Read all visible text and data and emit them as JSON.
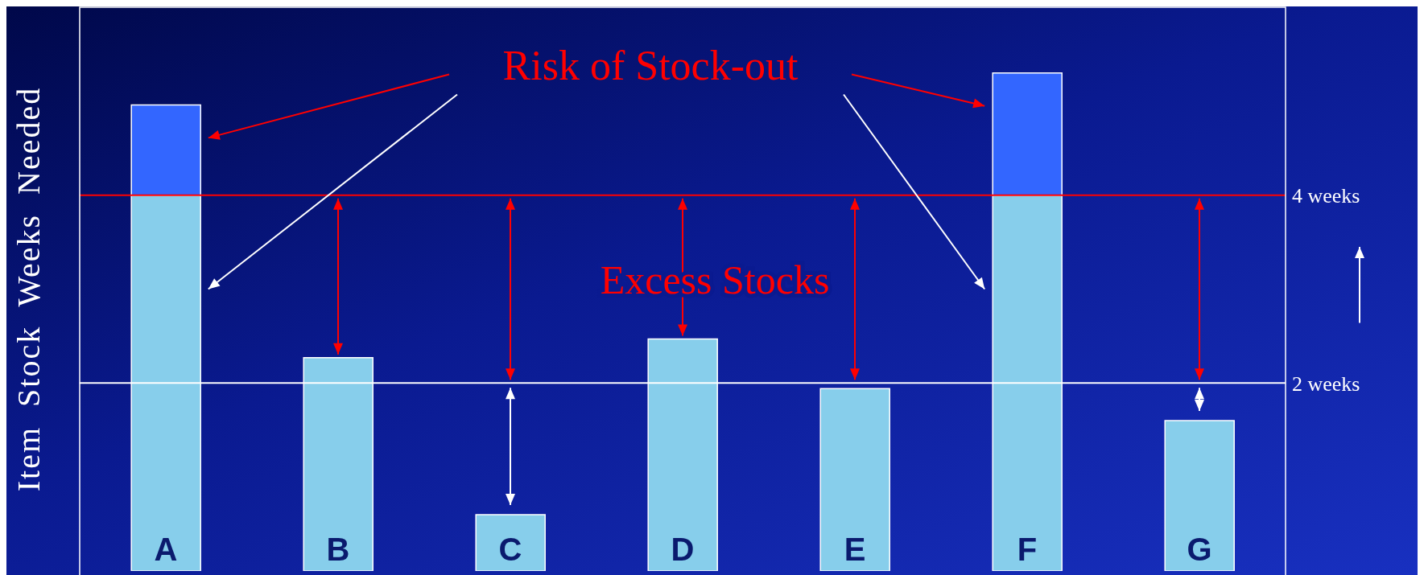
{
  "chart_data": {
    "type": "bar",
    "ylabel": "Item  Stock  Weeks  Needed",
    "categories": [
      "A",
      "B",
      "C",
      "D",
      "E",
      "F",
      "G"
    ],
    "stacked": true,
    "series": [
      {
        "color": "#87ceeb",
        "values": [
          4,
          2.27,
          0.6,
          2.47,
          1.94,
          4,
          1.6
        ]
      },
      {
        "color": "#3366ff",
        "values": [
          0.96,
          null,
          null,
          null,
          null,
          1.3,
          null
        ]
      }
    ],
    "ylim": [
      0,
      6
    ],
    "yticks": [
      {
        "value": 2,
        "label": "2 weeks"
      },
      {
        "value": 4,
        "label": "4 weeks"
      }
    ],
    "ref_lines": [
      {
        "axis": "y",
        "value": 4,
        "color": "#ff0000"
      },
      {
        "axis": "y",
        "value": 2,
        "color": "#ffffff"
      }
    ],
    "annotations": [
      "Risk of Stock-out",
      {
        "text": "Excess Stocks",
        "x": "D",
        "y": 2.47
      }
    ]
  }
}
